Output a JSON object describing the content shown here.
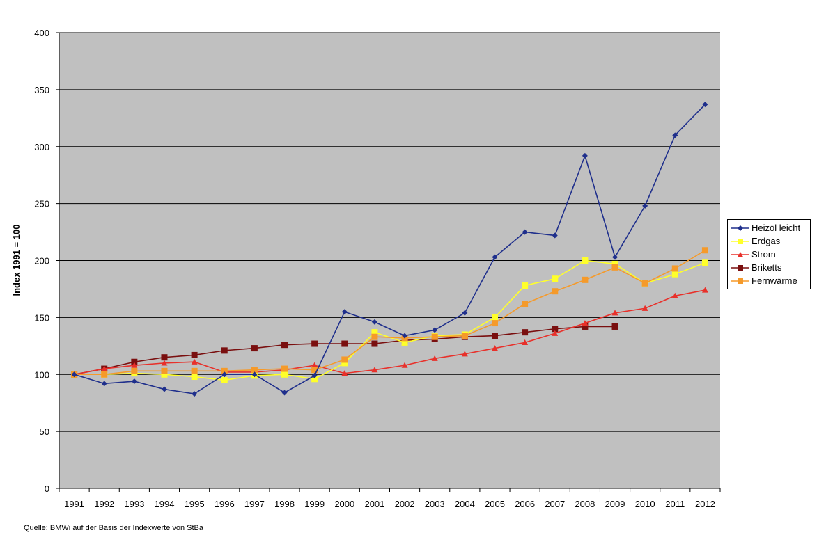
{
  "chart_data": {
    "type": "line",
    "title": "",
    "xlabel": "",
    "ylabel": "Index 1991 = 100",
    "ylim": [
      0,
      400
    ],
    "yticks": [
      0,
      50,
      100,
      150,
      200,
      250,
      300,
      350,
      400
    ],
    "grid": true,
    "legend_position": "right",
    "plot_background": "#c0c0c0",
    "categories": [
      "1991",
      "1992",
      "1993",
      "1994",
      "1995",
      "1996",
      "1997",
      "1998",
      "1999",
      "2000",
      "2001",
      "2002",
      "2003",
      "2004",
      "2005",
      "2006",
      "2007",
      "2008",
      "2009",
      "2010",
      "2011",
      "2012"
    ],
    "series": [
      {
        "name": "Heizöl leicht",
        "color": "#1f2f8c",
        "marker": "diamond",
        "values": [
          100,
          92,
          94,
          87,
          83,
          100,
          100,
          84,
          99,
          155,
          146,
          134,
          139,
          154,
          203,
          225,
          222,
          292,
          203,
          248,
          310,
          337
        ]
      },
      {
        "name": "Erdgas",
        "color": "#ffff2a",
        "marker": "square",
        "values": [
          100,
          100,
          101,
          100,
          98,
          95,
          99,
          100,
          96,
          110,
          137,
          128,
          134,
          135,
          150,
          178,
          184,
          200,
          197,
          180,
          188,
          198
        ]
      },
      {
        "name": "Strom",
        "color": "#e8302a",
        "marker": "triangle",
        "values": [
          100,
          105,
          108,
          110,
          111,
          102,
          102,
          104,
          108,
          101,
          104,
          108,
          114,
          118,
          123,
          128,
          136,
          145,
          154,
          158,
          169,
          174
        ]
      },
      {
        "name": "Briketts",
        "color": "#7a0f0f",
        "marker": "square",
        "values": [
          100,
          105,
          111,
          115,
          117,
          121,
          123,
          126,
          127,
          127,
          127,
          130,
          131,
          133,
          134,
          137,
          140,
          142,
          142,
          null,
          null,
          null
        ]
      },
      {
        "name": "Fernwärme",
        "color": "#f59a2a",
        "marker": "square",
        "values": [
          100,
          100,
          103,
          103,
          103,
          103,
          104,
          105,
          104,
          113,
          133,
          132,
          133,
          134,
          145,
          162,
          173,
          183,
          194,
          180,
          193,
          209
        ]
      }
    ]
  },
  "source_note": "Quelle: BMWi auf der Basis der Indexwerte von StBa"
}
